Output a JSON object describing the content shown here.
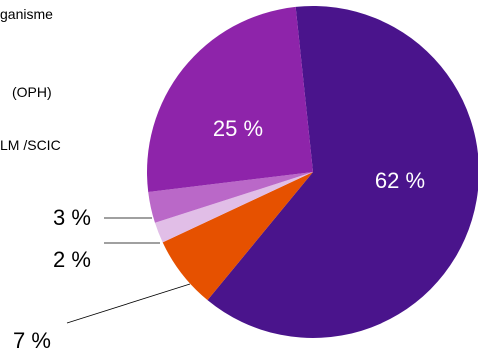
{
  "chart_data": {
    "type": "pie",
    "slices": [
      {
        "label": "62 %",
        "value": 62,
        "color": "#4a148c"
      },
      {
        "label": "7 %",
        "value": 7,
        "color": "#e65100"
      },
      {
        "label": "2 %",
        "value": 2,
        "color": "#e1bee7"
      },
      {
        "label": "3 %",
        "value": 3,
        "color": "#ba68c8"
      },
      {
        "label": "25 %",
        "value": 25,
        "color": "#8e24aa"
      }
    ],
    "legend_fragments": [
      "ganisme",
      "(OPH)",
      "LM /SCIC"
    ]
  }
}
